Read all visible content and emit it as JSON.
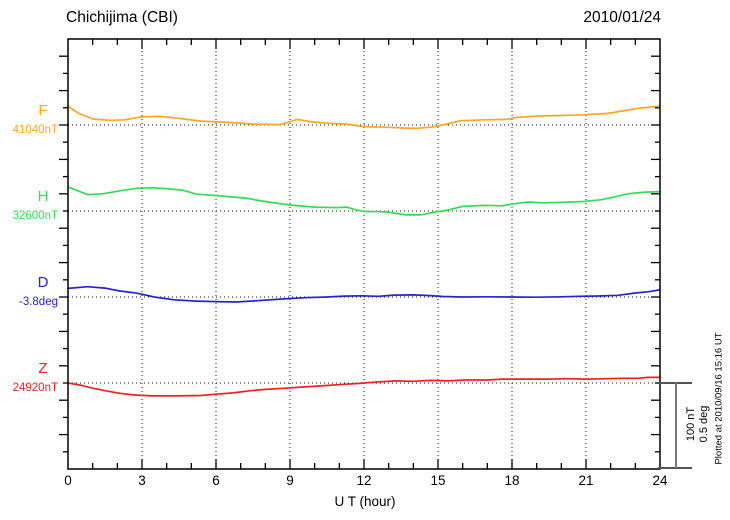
{
  "header": {
    "title": "Chichijima (CBI)",
    "date": "2010/01/24"
  },
  "xaxis": {
    "label": "U T (hour)",
    "ticks": [
      0,
      3,
      6,
      9,
      12,
      15,
      18,
      21,
      24
    ]
  },
  "scalebar": {
    "line1": "100 nT",
    "line2": "0.5 deg"
  },
  "watermark": "Plotted at 2010/09/16 15:16 UT",
  "chart_data": {
    "type": "line",
    "title": "Chichijima (CBI) geomagnetic field 1-day magnetogram",
    "station": "Chichijima (CBI)",
    "date": "2010/01/24",
    "xlabel": "U T (hour)",
    "x_range": [
      0,
      24
    ],
    "x_ticks": [
      0,
      3,
      6,
      9,
      12,
      15,
      18,
      21,
      24
    ],
    "grid": "dotted vertical lines every 3 hours; dotted horizontal baseline per channel",
    "legend_position": "left margin, one colored label per channel",
    "scale_per_division": {
      "nT": 100,
      "deg": 0.5
    },
    "plotted_note": "Plotted at 2010/09/16 15:16 UT",
    "series": [
      {
        "name": "F",
        "baseline_label": "41040nT",
        "baseline_value": 41040,
        "unit": "nT",
        "color": "#FFA81E",
        "points": [
          [
            0,
            41062
          ],
          [
            0.4,
            41054
          ],
          [
            1,
            41047
          ],
          [
            1.7,
            41045.5
          ],
          [
            2.3,
            41046
          ],
          [
            3,
            41049.5
          ],
          [
            3.7,
            41050
          ],
          [
            4.4,
            41048
          ],
          [
            5.4,
            41044.5
          ],
          [
            6.5,
            41043
          ],
          [
            7.5,
            41041
          ],
          [
            8.6,
            41040.5
          ],
          [
            9.3,
            41046.5
          ],
          [
            9.9,
            41043.5
          ],
          [
            10.6,
            41042
          ],
          [
            11.3,
            41041
          ],
          [
            12,
            41038
          ],
          [
            12.9,
            41037.5
          ],
          [
            13.6,
            41036.5
          ],
          [
            14.1,
            41036
          ],
          [
            14.7,
            41037.5
          ],
          [
            15.2,
            41040
          ],
          [
            15.9,
            41045
          ],
          [
            16.9,
            41046
          ],
          [
            17.8,
            41046.5
          ],
          [
            18.2,
            41049
          ],
          [
            19.1,
            41050.5
          ],
          [
            20,
            41051
          ],
          [
            21,
            41052
          ],
          [
            21.9,
            41053.5
          ],
          [
            22.7,
            41057.5
          ],
          [
            23.3,
            41060
          ],
          [
            24,
            41062
          ]
        ]
      },
      {
        "name": "H",
        "baseline_label": "32600nT",
        "baseline_value": 32600,
        "unit": "nT",
        "color": "#33DD55",
        "points": [
          [
            0,
            32628
          ],
          [
            0.8,
            32619
          ],
          [
            1.4,
            32620
          ],
          [
            2.1,
            32623.5
          ],
          [
            2.8,
            32626.5
          ],
          [
            3.4,
            32627
          ],
          [
            4,
            32626
          ],
          [
            4.7,
            32624
          ],
          [
            5.2,
            32619.5
          ],
          [
            6,
            32618
          ],
          [
            7.2,
            32615
          ],
          [
            8.1,
            32610.5
          ],
          [
            9,
            32607
          ],
          [
            10,
            32604.5
          ],
          [
            10.9,
            32604
          ],
          [
            11.3,
            32604.5
          ],
          [
            11.7,
            32601
          ],
          [
            12,
            32599.5
          ],
          [
            12.9,
            32599
          ],
          [
            13.7,
            32595.5
          ],
          [
            14.3,
            32595.5
          ],
          [
            14.9,
            32599
          ],
          [
            15.4,
            32601
          ],
          [
            16,
            32605.5
          ],
          [
            16.9,
            32606.5
          ],
          [
            17.6,
            32606
          ],
          [
            18.2,
            32609
          ],
          [
            18.7,
            32610.5
          ],
          [
            19.2,
            32609.5
          ],
          [
            20,
            32610
          ],
          [
            20.9,
            32611
          ],
          [
            21.6,
            32613
          ],
          [
            22.1,
            32616
          ],
          [
            22.7,
            32620
          ],
          [
            23.4,
            32622
          ],
          [
            24,
            32622.5
          ]
        ]
      },
      {
        "name": "D",
        "baseline_label": "-3.8deg",
        "baseline_value": -3.8,
        "unit": "deg",
        "color": "#2525CF",
        "points": [
          [
            0,
            -3.75
          ],
          [
            0.8,
            -3.74
          ],
          [
            1.5,
            -3.748
          ],
          [
            2.1,
            -3.765
          ],
          [
            2.8,
            -3.778
          ],
          [
            3.5,
            -3.8
          ],
          [
            4.3,
            -3.816
          ],
          [
            5.2,
            -3.824
          ],
          [
            6,
            -3.827
          ],
          [
            6.8,
            -3.829
          ],
          [
            7.5,
            -3.823
          ],
          [
            8.6,
            -3.812
          ],
          [
            9.6,
            -3.804
          ],
          [
            10.5,
            -3.8
          ],
          [
            11.2,
            -3.795
          ],
          [
            11.9,
            -3.793
          ],
          [
            12.6,
            -3.796
          ],
          [
            13.2,
            -3.789
          ],
          [
            14,
            -3.788
          ],
          [
            14.6,
            -3.791
          ],
          [
            15.2,
            -3.797
          ],
          [
            16,
            -3.8
          ],
          [
            17,
            -3.799
          ],
          [
            18,
            -3.8
          ],
          [
            19,
            -3.801
          ],
          [
            20,
            -3.799
          ],
          [
            20.7,
            -3.796
          ],
          [
            21.5,
            -3.794
          ],
          [
            22.3,
            -3.79
          ],
          [
            23,
            -3.777
          ],
          [
            23.5,
            -3.77
          ],
          [
            24,
            -3.759
          ]
        ]
      },
      {
        "name": "Z",
        "baseline_label": "24920nT",
        "baseline_value": 24920,
        "unit": "nT",
        "color": "#EE2222",
        "points": [
          [
            0,
            24920
          ],
          [
            0.5,
            24917.5
          ],
          [
            1,
            24914
          ],
          [
            1.5,
            24911
          ],
          [
            2.1,
            24908
          ],
          [
            2.7,
            24906
          ],
          [
            3.4,
            24905
          ],
          [
            4.4,
            24905
          ],
          [
            5.4,
            24905.5
          ],
          [
            6,
            24907
          ],
          [
            6.7,
            24908.5
          ],
          [
            7.4,
            24911
          ],
          [
            8,
            24912.5
          ],
          [
            8.8,
            24914
          ],
          [
            9.6,
            24915.5
          ],
          [
            10.4,
            24917
          ],
          [
            11.2,
            24918.5
          ],
          [
            11.8,
            24919.5
          ],
          [
            12.2,
            24920.5
          ],
          [
            12.7,
            24921.5
          ],
          [
            13.3,
            24922.5
          ],
          [
            14,
            24922
          ],
          [
            14.7,
            24923
          ],
          [
            15.4,
            24922.5
          ],
          [
            16.1,
            24923.5
          ],
          [
            17,
            24923.5
          ],
          [
            17.6,
            24924.5
          ],
          [
            18.5,
            24924.5
          ],
          [
            19.4,
            24924.5
          ],
          [
            20.2,
            24925
          ],
          [
            21,
            24924.5
          ],
          [
            21.8,
            24925
          ],
          [
            22.5,
            24925.5
          ],
          [
            23.1,
            24925.5
          ],
          [
            23.5,
            24926.5
          ],
          [
            24,
            24926.5
          ]
        ]
      }
    ]
  }
}
